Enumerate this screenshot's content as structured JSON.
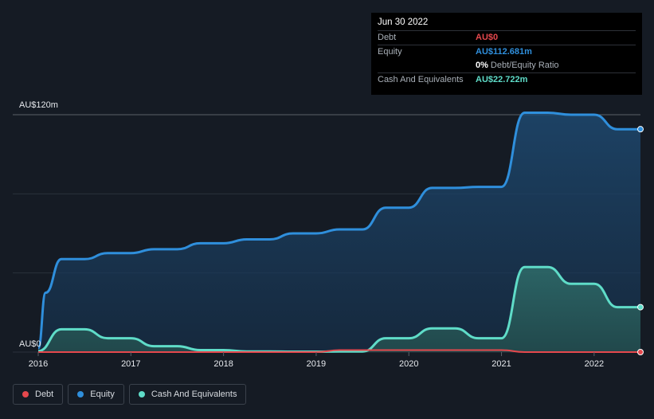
{
  "chart_data": {
    "type": "area",
    "title": "",
    "xlabel": "",
    "ylabel": "",
    "y_unit_labels": {
      "top": "AU$120m",
      "bottom": "AU$0"
    },
    "ylim": [
      0,
      120
    ],
    "xlim": [
      2016.0,
      2022.5
    ],
    "x_ticks": [
      "2016",
      "2017",
      "2018",
      "2019",
      "2020",
      "2021",
      "2022"
    ],
    "series": [
      {
        "name": "Equity",
        "color": "#2f8fdc",
        "x": [
          2016.0,
          2016.08,
          2016.25,
          2016.5,
          2016.75,
          2017.0,
          2017.25,
          2017.5,
          2017.75,
          2018.0,
          2018.25,
          2018.5,
          2018.75,
          2019.0,
          2019.25,
          2019.5,
          2019.75,
          2020.0,
          2020.25,
          2020.5,
          2020.75,
          2021.0,
          2021.25,
          2021.5,
          2021.75,
          2022.0,
          2022.25,
          2022.5
        ],
        "values": [
          2,
          30,
          47,
          47,
          50,
          50,
          52,
          52,
          55,
          55,
          57,
          57,
          60,
          60,
          62,
          62,
          73,
          73,
          83,
          83,
          83.5,
          83.5,
          121,
          121,
          120,
          120,
          112.681,
          112.681
        ]
      },
      {
        "name": "Cash And Equivalents",
        "color": "#5fdcc8",
        "x": [
          2016.0,
          2016.25,
          2016.5,
          2016.75,
          2017.0,
          2017.25,
          2017.5,
          2017.75,
          2018.0,
          2018.25,
          2018.5,
          2018.75,
          2019.0,
          2019.25,
          2019.5,
          2019.75,
          2020.0,
          2020.25,
          2020.5,
          2020.75,
          2021.0,
          2021.25,
          2021.5,
          2021.75,
          2022.0,
          2022.25,
          2022.5
        ],
        "values": [
          0.5,
          11.5,
          11.5,
          7,
          7,
          3,
          3,
          1,
          1,
          0.3,
          0.3,
          0.2,
          0.2,
          0.3,
          0.3,
          7,
          7,
          12,
          12,
          7,
          7,
          43,
          43,
          34.5,
          34.5,
          22.722,
          22.722
        ]
      },
      {
        "name": "Debt",
        "color": "#e5484d",
        "x": [
          2016.0,
          2016.25,
          2019.0,
          2019.25,
          2021.0,
          2021.25,
          2022.5
        ],
        "values": [
          0,
          0,
          0,
          1,
          1,
          0,
          0
        ]
      }
    ]
  },
  "tooltip": {
    "date": "Jun 30 2022",
    "rows": [
      {
        "label": "Debt",
        "value": "AU$0",
        "color": "#e5484d"
      },
      {
        "label": "Equity",
        "value": "AU$112.681m",
        "color": "#2f8fdc"
      }
    ],
    "ratio": {
      "value": "0%",
      "label": "Debt/Equity Ratio"
    },
    "cash": {
      "label": "Cash And Equivalents",
      "value": "AU$22.722m",
      "color": "#5fdcc8"
    }
  },
  "legend": [
    {
      "label": "Debt",
      "color": "#e5484d"
    },
    {
      "label": "Equity",
      "color": "#2f8fdc"
    },
    {
      "label": "Cash And Equivalents",
      "color": "#5fdcc8"
    }
  ]
}
